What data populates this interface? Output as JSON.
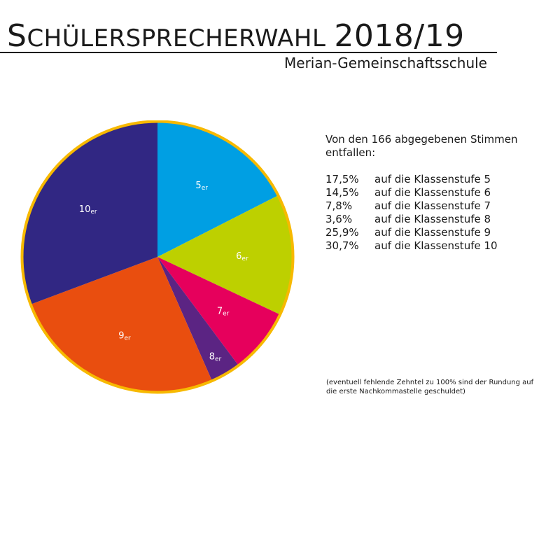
{
  "header": {
    "title_cap": "S",
    "title_rest": "CHÜLERSPRECHERWAHL",
    "title_year": "2018/19",
    "subtitle": "Merian-Gemeinschaftsschule"
  },
  "summary": {
    "intro": "Von den 166 abgegebenen Stimmen entfallen:",
    "rows": [
      {
        "percent": "17,5%",
        "text": "auf die Klassenstufe 5"
      },
      {
        "percent": "14,5%",
        "text": "auf die Klassenstufe 6"
      },
      {
        "percent": "7,8%",
        "text": "auf die Klassenstufe 7"
      },
      {
        "percent": "3,6%",
        "text": "auf die Klassenstufe 8"
      },
      {
        "percent": "25,9%",
        "text": "auf die Klassenstufe 9"
      },
      {
        "percent": "30,7%",
        "text": "auf die Klassenstufe 10"
      }
    ],
    "footnote": "(eventuell fehlende Zehntel zu 100% sind der Rundung auf die erste Nachkommastelle geschuldet)"
  },
  "chart_data": {
    "type": "pie",
    "title": "",
    "total_votes": 166,
    "slices": [
      {
        "label": "5",
        "suffix": "er",
        "value": 17.5,
        "color": "#009fe3"
      },
      {
        "label": "6",
        "suffix": "er",
        "value": 14.5,
        "color": "#bdd000"
      },
      {
        "label": "7",
        "suffix": "er",
        "value": 7.8,
        "color": "#e6005c"
      },
      {
        "label": "8",
        "suffix": "er",
        "value": 3.6,
        "color": "#5b2483"
      },
      {
        "label": "9",
        "suffix": "er",
        "value": 25.9,
        "color": "#e94e0f"
      },
      {
        "label": "10",
        "suffix": "er",
        "value": 30.7,
        "color": "#312783"
      }
    ],
    "border_color": "#f7b900",
    "start": "12 o'clock",
    "direction": "clockwise"
  }
}
